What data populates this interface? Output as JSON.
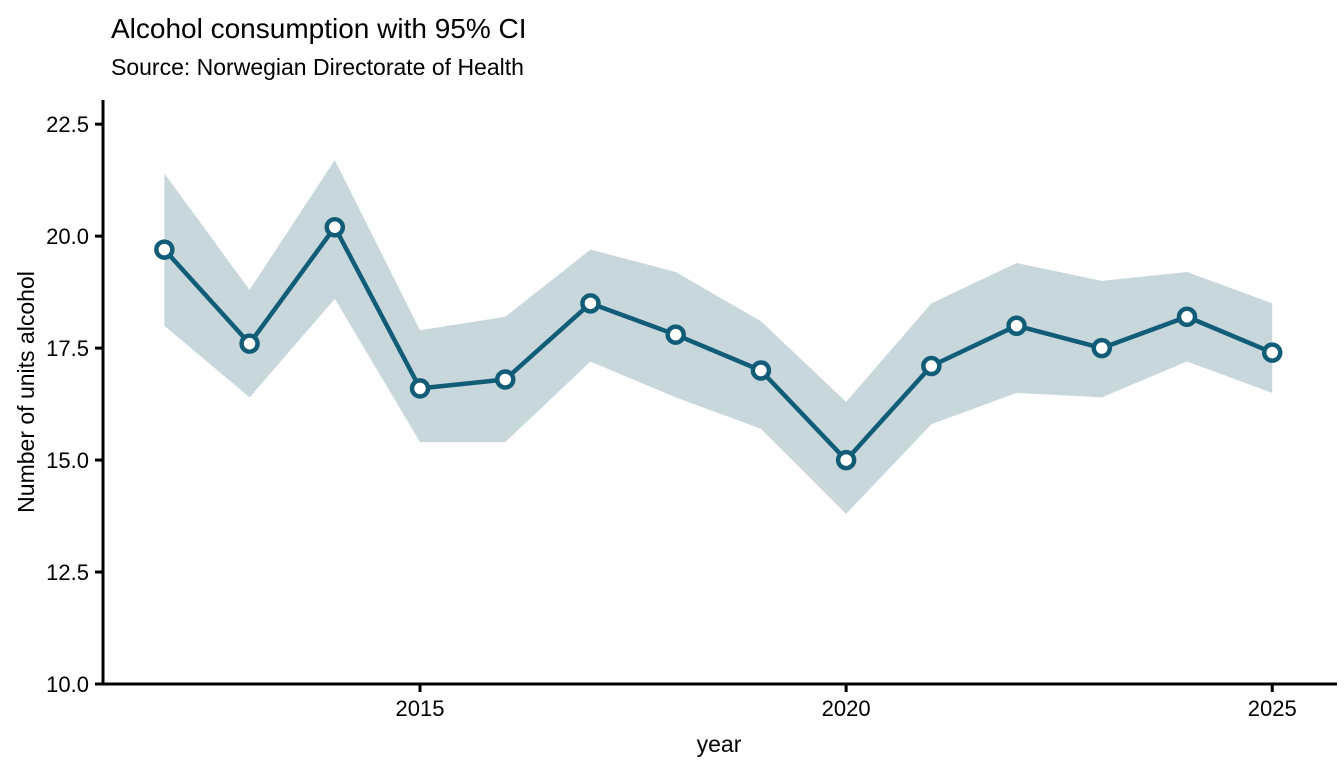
{
  "figure": {
    "title": "Alcohol consumption with 95% CI",
    "subtitle": "Source: Norwegian Directorate of Health"
  },
  "chart_data": {
    "type": "line",
    "title": "Alcohol consumption with 95% CI",
    "subtitle": "Source: Norwegian Directorate of Health",
    "xlabel": "year",
    "ylabel": "Number of units alcohol",
    "ci_level": "95%",
    "x": [
      2012,
      2013,
      2014,
      2015,
      2016,
      2017,
      2018,
      2019,
      2020,
      2021,
      2022,
      2023,
      2024,
      2025
    ],
    "series": [
      {
        "name": "Number of units alcohol",
        "values": [
          19.7,
          17.6,
          20.2,
          16.6,
          16.8,
          18.5,
          17.8,
          17.0,
          15.0,
          17.1,
          18.0,
          17.5,
          18.2,
          17.4
        ]
      }
    ],
    "ci_lower": [
      18.0,
      16.4,
      18.6,
      15.4,
      15.4,
      17.2,
      16.4,
      15.7,
      13.8,
      15.8,
      16.5,
      16.4,
      17.2,
      16.5
    ],
    "ci_upper": [
      21.4,
      18.8,
      21.7,
      17.9,
      18.2,
      19.7,
      19.2,
      18.1,
      16.3,
      18.5,
      19.4,
      19.0,
      19.2,
      18.5
    ],
    "xticks": [
      2015,
      2020,
      2025
    ],
    "yticks": [
      10.0,
      12.5,
      15.0,
      17.5,
      20.0,
      22.5
    ],
    "xlim": [
      2011.28,
      2025.76
    ],
    "ylim": [
      10.0,
      23.04
    ],
    "grid": false,
    "legend": false,
    "colors": {
      "line": "#115d78",
      "ribbon": "#c8d7dc",
      "marker_fill": "#ffffff",
      "axis": "#000000",
      "text": "#000000"
    }
  }
}
